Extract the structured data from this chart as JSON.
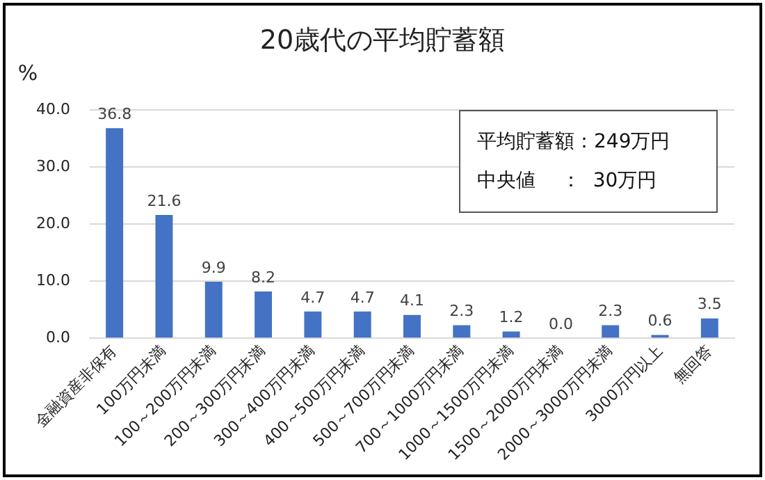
{
  "chart_data": {
    "type": "bar",
    "title": "20歳代の平均貯蓄額",
    "ylabel": "%",
    "categories": [
      "金融資産非保有",
      "100万円未満",
      "100～200万円未満",
      "200～300万円未満",
      "300～400万円未満",
      "400～500万円未満",
      "500～700万円未満",
      "700～1000万円未満",
      "1000～1500万円未満",
      "1500～2000万円未満",
      "2000～3000万円未満",
      "3000万円以上",
      "無回答"
    ],
    "values": [
      36.8,
      21.6,
      9.9,
      8.2,
      4.7,
      4.7,
      4.1,
      2.3,
      1.2,
      0.0,
      2.3,
      0.6,
      3.5
    ],
    "value_labels": [
      "36.8",
      "21.6",
      "9.9",
      "8.2",
      "4.7",
      "4.7",
      "4.1",
      "2.3",
      "1.2",
      "0.0",
      "2.3",
      "0.6",
      "3.5"
    ],
    "color": "#4472c4",
    "ylim": [
      0,
      40
    ],
    "yticks": [
      {
        "value": 0,
        "label": "0.0"
      },
      {
        "value": 10,
        "label": "10.0"
      },
      {
        "value": 20,
        "label": "20.0"
      },
      {
        "value": 30,
        "label": "30.0"
      },
      {
        "value": 40,
        "label": "40.0"
      }
    ],
    "grid": "y",
    "legend": false,
    "annotations": [
      "平均貯蓄額：249万円",
      "中央値　 ：  30万円"
    ]
  }
}
